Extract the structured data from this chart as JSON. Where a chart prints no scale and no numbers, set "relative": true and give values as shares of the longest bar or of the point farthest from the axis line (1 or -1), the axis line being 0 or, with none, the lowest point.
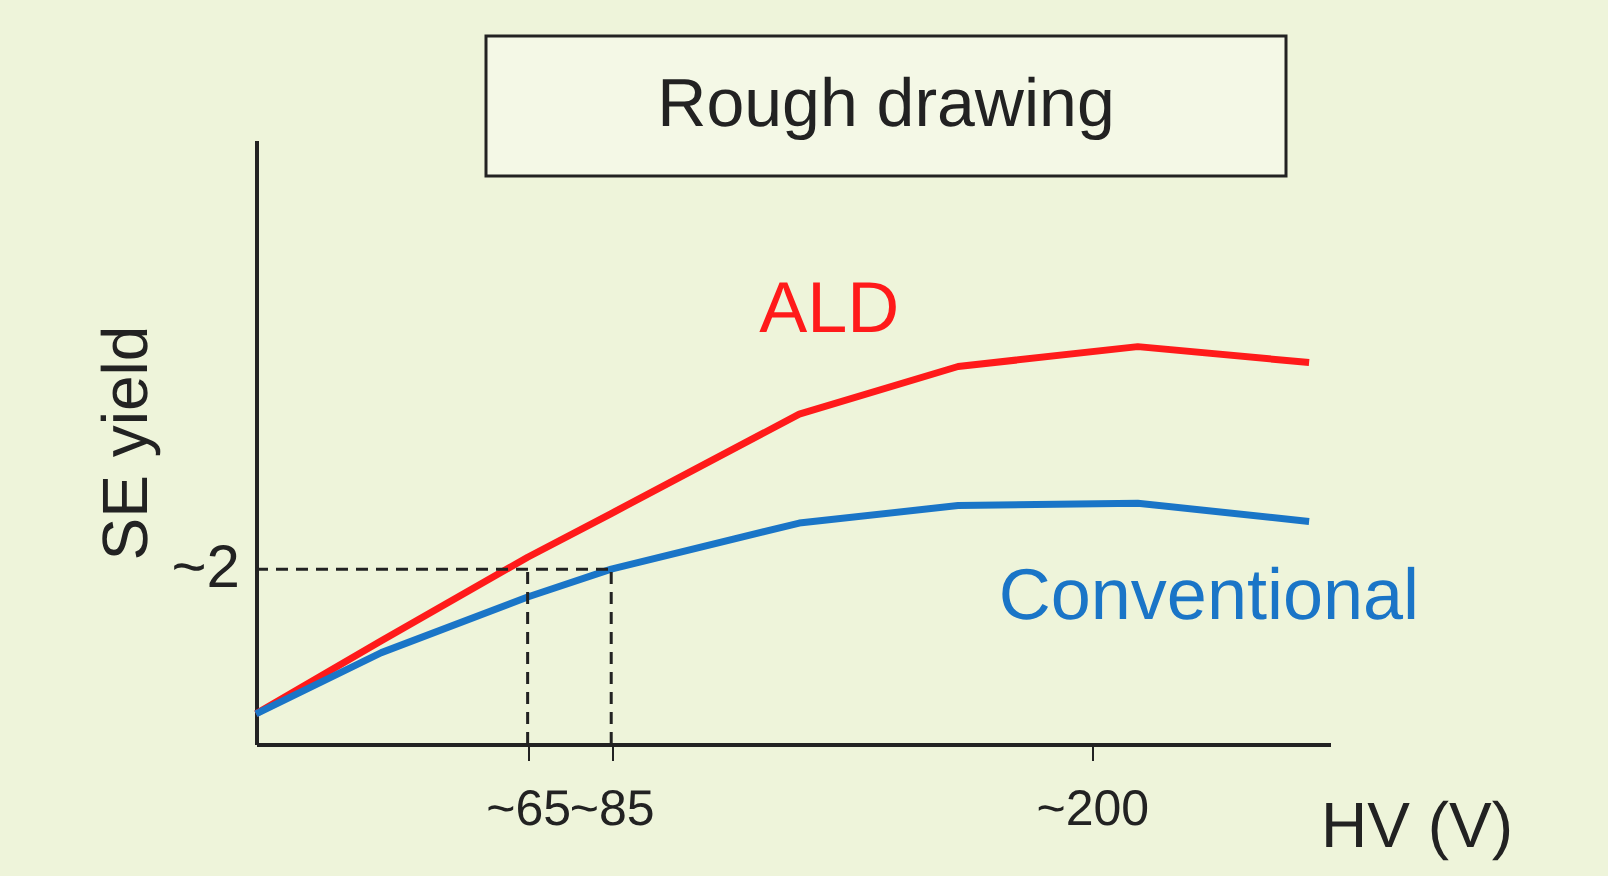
{
  "chart_data": {
    "type": "line",
    "title": "Rough drawing",
    "xlabel": "HV (V)",
    "ylabel": "SE yield",
    "relative": true,
    "x": [
      0,
      30,
      65,
      85,
      130,
      168,
      211,
      252
    ],
    "series": [
      {
        "name": "ALD",
        "color": "#ff1a1a",
        "values": [
          0.076,
          0.26,
          0.47,
          0.58,
          0.83,
          0.95,
          1.0,
          0.96
        ]
      },
      {
        "name": "Conventional",
        "color": "#1a75c7",
        "values": [
          0.076,
          0.23,
          0.37,
          0.44,
          0.556,
          0.6,
          0.606,
          0.56
        ]
      }
    ],
    "xlim": [
      0,
      257
    ],
    "xticks": [
      {
        "value": 65,
        "label": "~65"
      },
      {
        "value": 85,
        "label": "~85"
      },
      {
        "value": 200,
        "label": "~200"
      }
    ],
    "annotations": [
      "~2"
    ],
    "ref_lines": [
      {
        "axis": "y",
        "value": 0.44,
        "label": null,
        "line_style": "dashed"
      },
      {
        "axis": "x",
        "value": 65,
        "label": null,
        "line_style": "dashed"
      },
      {
        "axis": "x",
        "value": 85,
        "label": null,
        "line_style": "dashed"
      }
    ],
    "tick_labels": "x",
    "marker": "none",
    "line_style": "solid"
  }
}
